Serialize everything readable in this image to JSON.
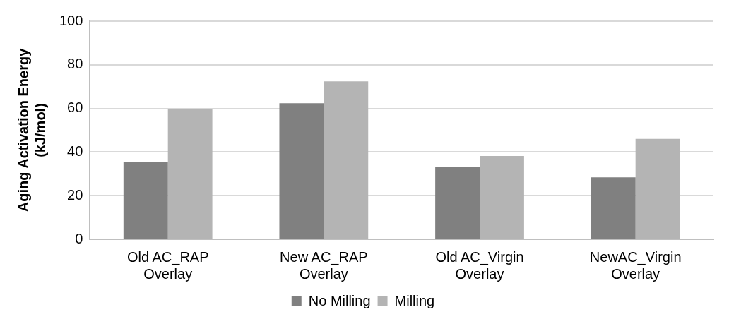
{
  "chart_data": {
    "type": "bar",
    "ylabel": "Aging Activation Energy (kJ/mol)",
    "categories": [
      "Old AC_RAP Overlay",
      "New AC_RAP Overlay",
      "Old AC_Virgin Overlay",
      "NewAC_Virgin Overlay"
    ],
    "series": [
      {
        "name": "No Milling",
        "color": "#808080",
        "values": [
          35.4,
          62.4,
          33.1,
          28.4
        ]
      },
      {
        "name": "Milling",
        "color": "#b4b4b4",
        "values": [
          59.7,
          72.4,
          38.2,
          46
        ]
      }
    ],
    "ylim": [
      0,
      100
    ],
    "yticks": [
      0,
      20,
      40,
      60,
      80,
      100
    ],
    "grid": "y",
    "legend": "bottom"
  }
}
